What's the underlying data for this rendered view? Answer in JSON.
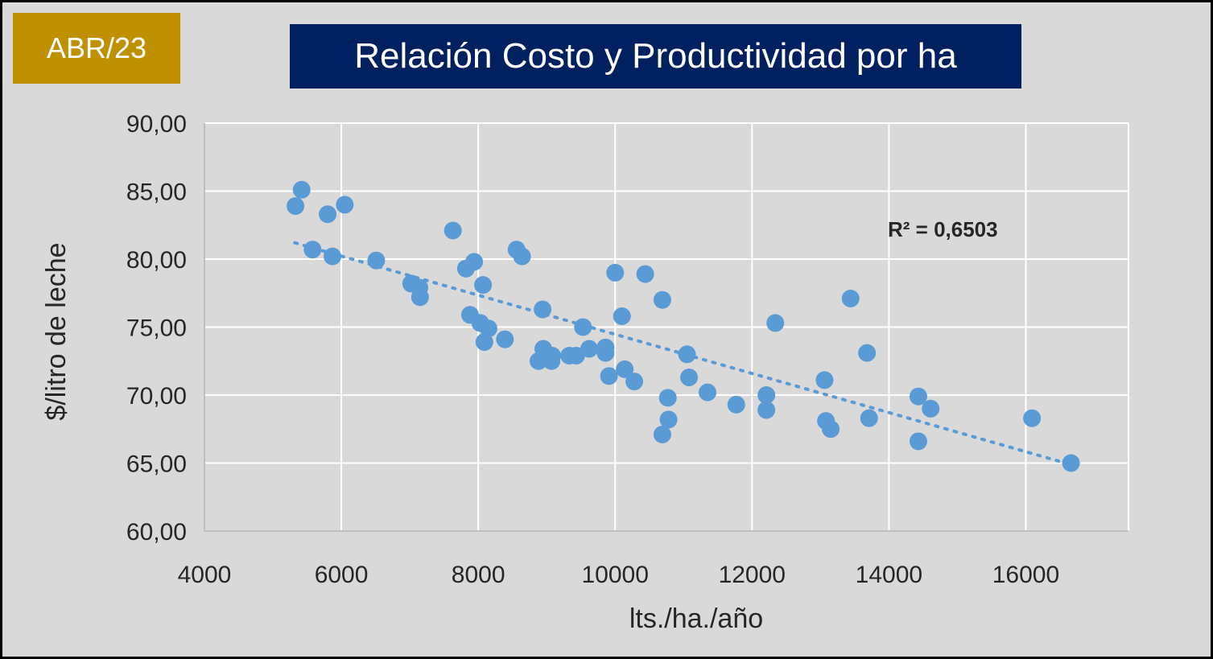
{
  "badge": {
    "label": "ABR/23",
    "color": "#bf9000"
  },
  "colors": {
    "title_bg": "#002060",
    "panel": "#d9d9d9",
    "point": "#5b9bd5",
    "grid": "#ffffff",
    "axis": "#bfbfbf",
    "text": "#262626"
  },
  "chart_data": {
    "type": "scatter",
    "title": "Relación Costo y Productividad por ha",
    "xlabel": "lts./ha./año",
    "ylabel": "$/litro de leche",
    "xlim": [
      4000,
      17500
    ],
    "ylim": [
      60,
      90
    ],
    "xticks": [
      4000,
      6000,
      8000,
      10000,
      12000,
      14000,
      16000
    ],
    "xtick_labels": [
      "4000",
      "6000",
      "8000",
      "10000",
      "12000",
      "14000",
      "16000"
    ],
    "yticks": [
      60,
      65,
      70,
      75,
      80,
      85,
      90
    ],
    "ytick_labels": [
      "60,00",
      "65,00",
      "70,00",
      "75,00",
      "80,00",
      "85,00",
      "90,00"
    ],
    "grid": true,
    "trendline": {
      "style": "dotted",
      "label": "R² = 0,6503",
      "x": [
        5320,
        16650
      ],
      "y": [
        81.2,
        64.9
      ]
    },
    "points": [
      {
        "x": 5330,
        "y": 83.9
      },
      {
        "x": 5420,
        "y": 85.1
      },
      {
        "x": 5580,
        "y": 80.7
      },
      {
        "x": 5800,
        "y": 83.3
      },
      {
        "x": 5870,
        "y": 80.2
      },
      {
        "x": 6050,
        "y": 84.0
      },
      {
        "x": 6510,
        "y": 79.9
      },
      {
        "x": 7020,
        "y": 78.2
      },
      {
        "x": 7140,
        "y": 77.9
      },
      {
        "x": 7150,
        "y": 77.2
      },
      {
        "x": 7630,
        "y": 82.1
      },
      {
        "x": 7820,
        "y": 79.3
      },
      {
        "x": 7940,
        "y": 79.8
      },
      {
        "x": 7880,
        "y": 75.9
      },
      {
        "x": 8030,
        "y": 75.3
      },
      {
        "x": 8070,
        "y": 78.1
      },
      {
        "x": 8150,
        "y": 74.9
      },
      {
        "x": 8090,
        "y": 73.9
      },
      {
        "x": 8390,
        "y": 74.1
      },
      {
        "x": 8560,
        "y": 80.7
      },
      {
        "x": 8640,
        "y": 80.2
      },
      {
        "x": 8940,
        "y": 76.3
      },
      {
        "x": 8950,
        "y": 73.4
      },
      {
        "x": 8880,
        "y": 72.5
      },
      {
        "x": 9070,
        "y": 72.5
      },
      {
        "x": 9080,
        "y": 72.9
      },
      {
        "x": 9330,
        "y": 72.9
      },
      {
        "x": 9430,
        "y": 72.9
      },
      {
        "x": 9530,
        "y": 75.0
      },
      {
        "x": 9620,
        "y": 73.4
      },
      {
        "x": 9860,
        "y": 73.5
      },
      {
        "x": 9860,
        "y": 73.1
      },
      {
        "x": 9910,
        "y": 71.4
      },
      {
        "x": 10000,
        "y": 79.0
      },
      {
        "x": 10100,
        "y": 75.8
      },
      {
        "x": 10140,
        "y": 71.9
      },
      {
        "x": 10280,
        "y": 71.0
      },
      {
        "x": 10440,
        "y": 78.9
      },
      {
        "x": 10690,
        "y": 77.0
      },
      {
        "x": 10690,
        "y": 67.1
      },
      {
        "x": 10770,
        "y": 69.8
      },
      {
        "x": 10780,
        "y": 68.2
      },
      {
        "x": 11050,
        "y": 73.0
      },
      {
        "x": 11080,
        "y": 71.3
      },
      {
        "x": 11350,
        "y": 70.2
      },
      {
        "x": 11770,
        "y": 69.3
      },
      {
        "x": 12210,
        "y": 70.0
      },
      {
        "x": 12210,
        "y": 68.9
      },
      {
        "x": 12340,
        "y": 75.3
      },
      {
        "x": 13060,
        "y": 71.1
      },
      {
        "x": 13080,
        "y": 68.1
      },
      {
        "x": 13150,
        "y": 67.5
      },
      {
        "x": 13440,
        "y": 77.1
      },
      {
        "x": 13680,
        "y": 73.1
      },
      {
        "x": 13710,
        "y": 68.3
      },
      {
        "x": 14430,
        "y": 69.9
      },
      {
        "x": 14430,
        "y": 66.6
      },
      {
        "x": 14610,
        "y": 69.0
      },
      {
        "x": 16090,
        "y": 68.3
      },
      {
        "x": 16660,
        "y": 65.0
      }
    ]
  }
}
